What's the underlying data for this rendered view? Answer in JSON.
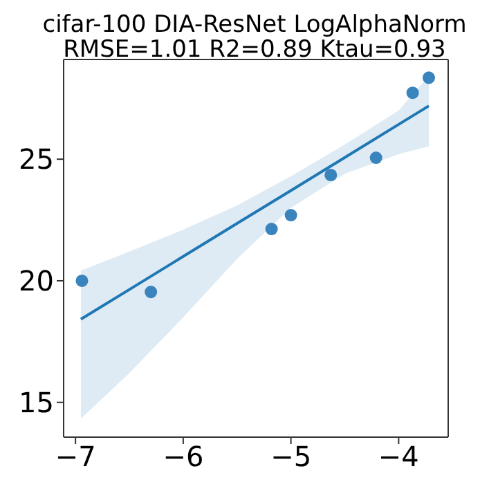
{
  "chart_data": {
    "type": "scatter",
    "title": "cifar-100 DIA-ResNet LogAlphaNorm",
    "subtitle": "RMSE=1.01  R2=0.89 Ktau=0.93",
    "xlim": [
      -7.11,
      -3.54
    ],
    "xticks": [
      -7,
      -6,
      -5,
      -4
    ],
    "ylim": [
      13.57,
      29.1
    ],
    "yticks": [
      15,
      20,
      25
    ],
    "grid": false,
    "legend": false,
    "series": [
      {
        "color": "#3a84be",
        "marker": "circle",
        "x": [
          -6.94,
          -6.3,
          -5.18,
          -5.0,
          -4.63,
          -4.21,
          -3.87,
          -3.72
        ],
        "values": [
          20.0,
          19.54,
          22.13,
          22.7,
          24.35,
          25.06,
          27.73,
          28.35
        ]
      },
      {
        "type": "line",
        "color": "#1f77b4",
        "marker": "none",
        "x": [
          -6.95,
          -6.5,
          -6.0,
          -5.5,
          -5.0,
          -4.5,
          -4.0,
          -3.72
        ],
        "values": [
          18.42,
          19.64,
          21.0,
          22.36,
          23.71,
          25.07,
          26.43,
          27.19
        ],
        "lower": [
          14.33,
          16.2,
          18.5,
          20.9,
          23.0,
          24.4,
          25.2,
          25.53
        ],
        "upper": [
          20.42,
          21.2,
          22.1,
          23.1,
          24.3,
          25.6,
          27.0,
          28.43
        ]
      }
    ]
  }
}
